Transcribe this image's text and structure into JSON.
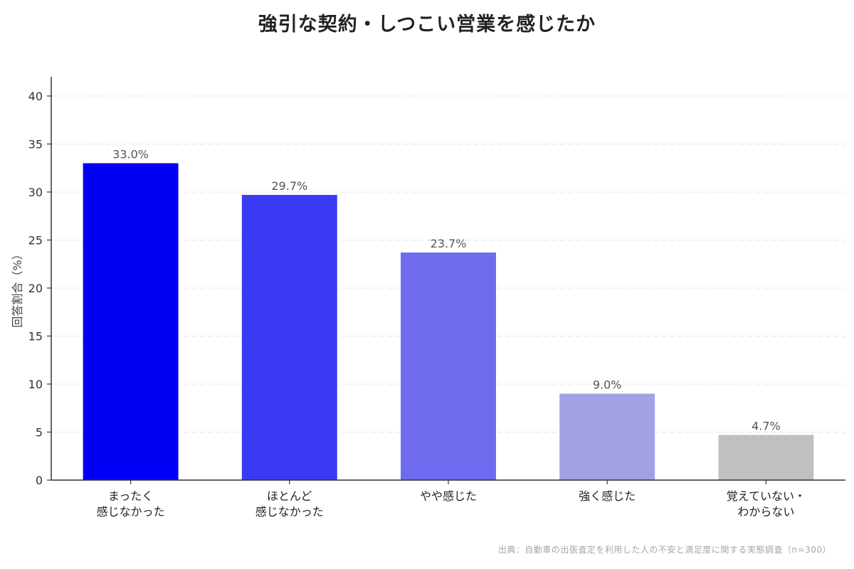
{
  "chart_data": {
    "type": "bar",
    "title": "強引な契約・しつこい営業を感じたか",
    "ylabel": "回答割合（%）",
    "xlabel": "",
    "ylim": [
      0,
      42
    ],
    "yticks": [
      0,
      5,
      10,
      15,
      20,
      25,
      30,
      35,
      40
    ],
    "grid": true,
    "categories": [
      [
        "まったく",
        "感じなかった"
      ],
      [
        "ほとんど",
        "感じなかった"
      ],
      [
        "やや感じた"
      ],
      [
        "強く感じた"
      ],
      [
        "覚えていない・",
        "わからない"
      ]
    ],
    "values": [
      33.0,
      29.7,
      23.7,
      9.0,
      4.7
    ],
    "value_labels": [
      "33.0%",
      "29.7%",
      "23.7%",
      "9.0%",
      "4.7%"
    ],
    "colors": [
      "#0000f5",
      "#3a3af5",
      "#6e6bef",
      "#a3a1e5",
      "#c0c0c0"
    ],
    "source": "出典：自動車の出張査定を利用した人の不安と満足度に関する実態調査（n=300）"
  }
}
